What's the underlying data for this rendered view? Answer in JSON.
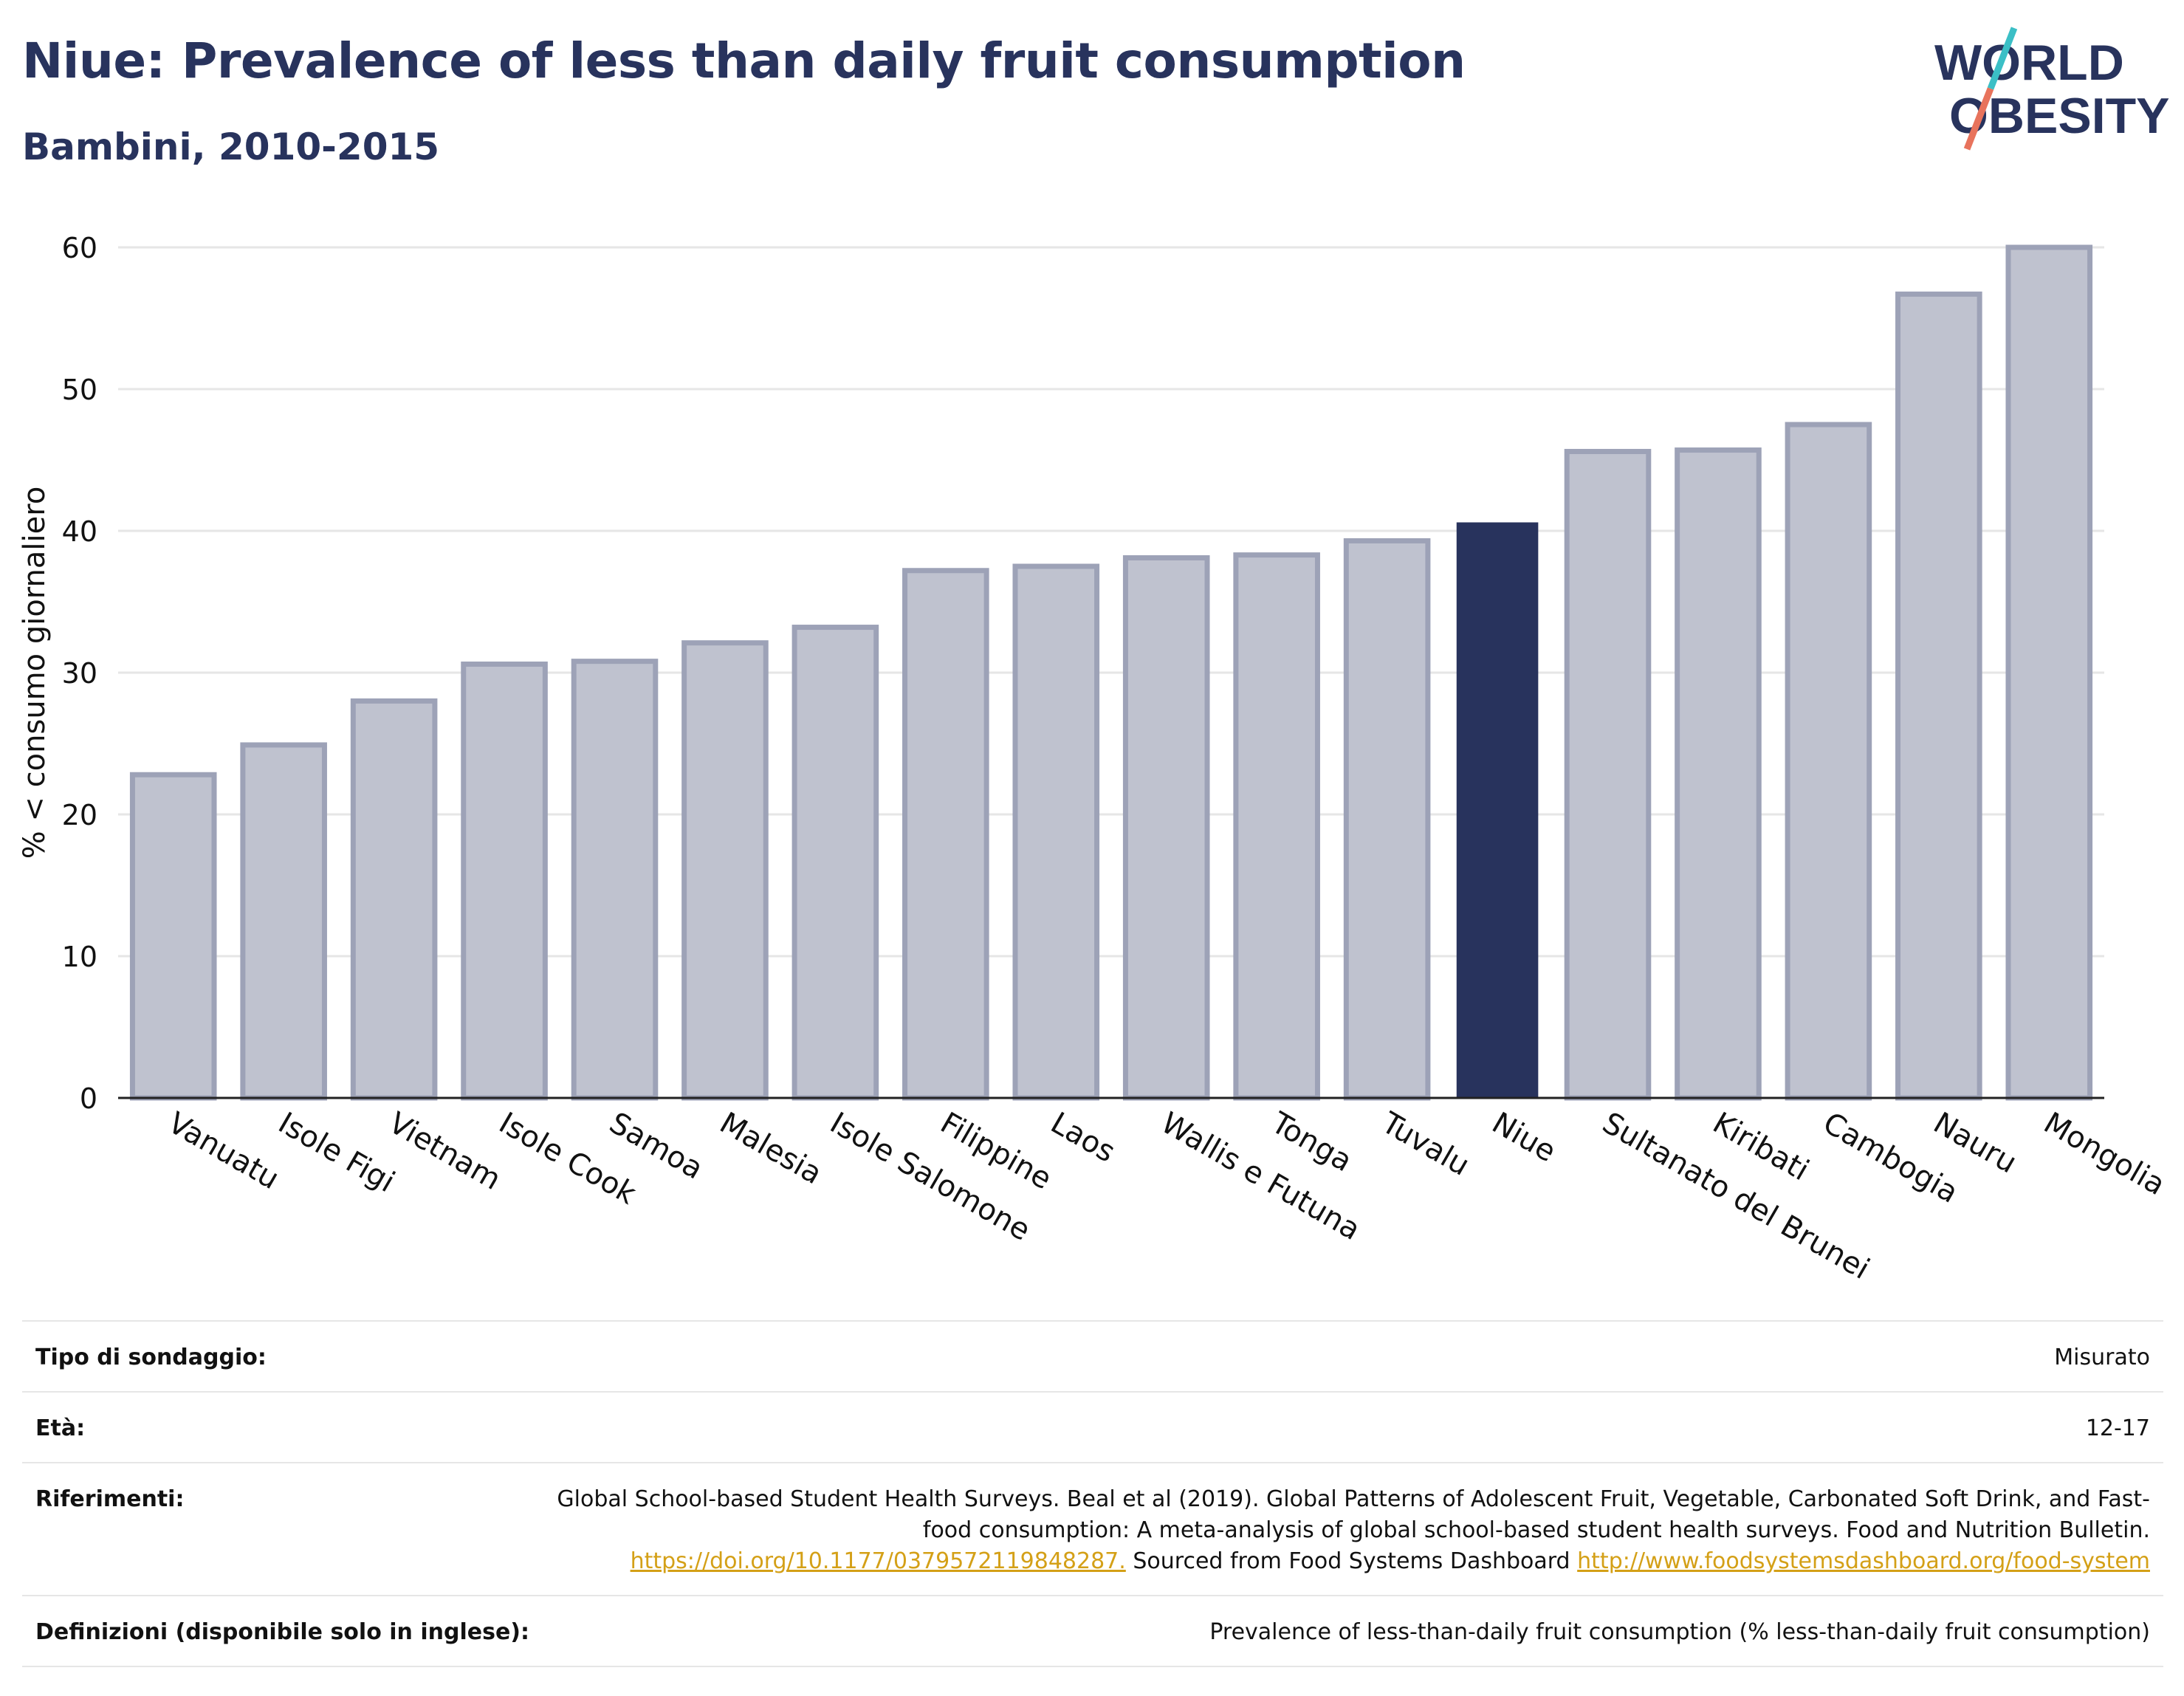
{
  "header": {
    "title": "Niue: Prevalence of less than daily fruit consumption",
    "subtitle": "Bambini, 2010-2015",
    "logo_line1": "WORLD",
    "logo_line2": "OBESITY"
  },
  "colors": {
    "bar": "#bfc2cf",
    "bar_border": "#9da2b7",
    "highlight": "#28335d",
    "grid": "#e6e6e6",
    "logo_text": "#28335d",
    "logo_slash_top": "#3bbfc6",
    "logo_slash_bottom": "#e8735c",
    "link": "#d4a017"
  },
  "chart_data": {
    "type": "bar",
    "categories": [
      "Vanuatu",
      "Isole Figi",
      "Vietnam",
      "Isole Cook",
      "Samoa",
      "Malesia",
      "Isole Salomone",
      "Filippine",
      "Laos",
      "Wallis e Futuna",
      "Tonga",
      "Tuvalu",
      "Niue",
      "Sultanato del Brunei",
      "Kiribati",
      "Cambogia",
      "Nauru",
      "Mongolia"
    ],
    "values": [
      22.8,
      24.9,
      28.0,
      30.6,
      30.8,
      32.1,
      33.2,
      37.2,
      37.5,
      38.1,
      38.3,
      39.3,
      40.6,
      45.6,
      45.7,
      47.5,
      56.7,
      60.0
    ],
    "highlight": "Niue",
    "ylabel": "% < consumo giornaliero",
    "xlabel": "",
    "ylim": [
      0,
      60
    ],
    "yticks": [
      0,
      10,
      20,
      30,
      40,
      50,
      60
    ],
    "grid": true
  },
  "info": {
    "survey_label": "Tipo di sondaggio:",
    "survey_value": "Misurato",
    "age_label": "Età:",
    "age_value": "12-17",
    "refs_label": "Riferimenti:",
    "refs_text1": "Global School-based Student Health Surveys. Beal et al (2019). Global Patterns of Adolescent Fruit, Vegetable, Carbonated Soft Drink, and Fast-food consumption: A meta-analysis of global school-based student health surveys. Food and Nutrition Bulletin.",
    "refs_link1": "https://doi.org/10.1177/0379572119848287.",
    "refs_text2": "Sourced from Food Systems Dashboard",
    "refs_link2": "http://www.foodsystemsdashboard.org/food-system",
    "defs_label": "Definizioni (disponibile solo in inglese):",
    "defs_value": "Prevalence of less-than-daily fruit consumption (% less-than-daily fruit consumption)"
  }
}
